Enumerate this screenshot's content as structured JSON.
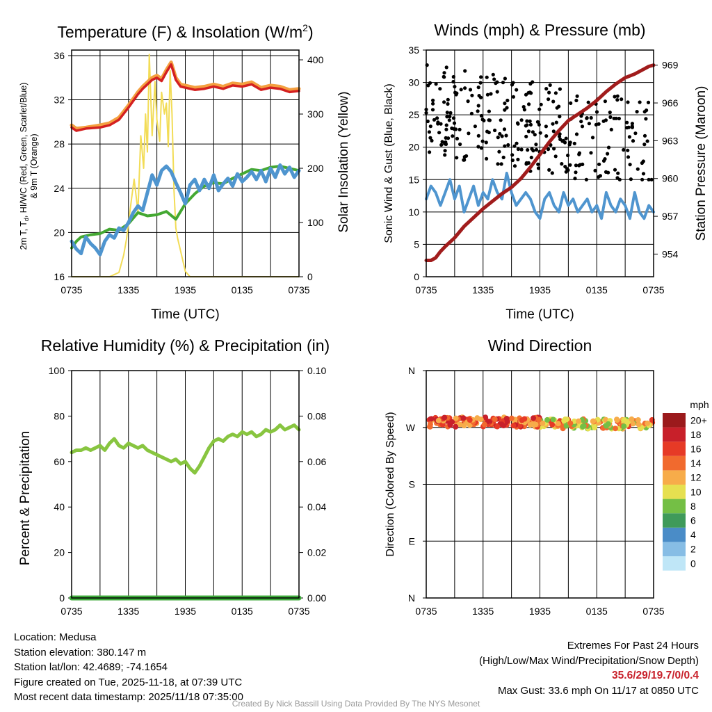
{
  "chart_data": [
    {
      "id": "temp",
      "type": "line",
      "title": "Temperature (F) & Insolation (W/m",
      "title_sup": "2",
      "title_end": ")",
      "xlabel": "Time (UTC)",
      "ylabel_left": [
        "2m T, T",
        "d",
        ", HI/WC (Red, Green, Scarlet/Blue)",
        "& 9m T (Orange)"
      ],
      "ylabel_right": "Solar Insolation (Yellow)",
      "x_ticks": [
        "0735",
        "1335",
        "1935",
        "0135",
        "0735"
      ],
      "xlim_hours": [
        0,
        24
      ],
      "ylim_left": [
        16,
        36.5
      ],
      "yticks_left": [
        "16",
        "20",
        "24",
        "28",
        "32",
        "36"
      ],
      "ylim_right": [
        0,
        418
      ],
      "yticks_right": [
        "0",
        "100",
        "200",
        "300",
        "400"
      ],
      "series": [
        {
          "name": "9m T",
          "color": "#f4a040",
          "axis": "left",
          "x": [
            0,
            0.5,
            1.5,
            3,
            4,
            5,
            6,
            7,
            7.5,
            8,
            8.5,
            9,
            9.5,
            10,
            10.5,
            11,
            11.5,
            12,
            13,
            14,
            15,
            16,
            17,
            18,
            19,
            20,
            21,
            22,
            23,
            24
          ],
          "y": [
            29.7,
            29.4,
            29.5,
            29.7,
            29.9,
            30.4,
            31.5,
            32.7,
            33.2,
            33.6,
            34.0,
            34.2,
            33.9,
            34.7,
            35.4,
            34.0,
            33.4,
            33.3,
            33.1,
            33.2,
            33.4,
            33.2,
            33.5,
            33.4,
            33.6,
            33.1,
            33.3,
            33.2,
            32.9,
            33.0
          ]
        },
        {
          "name": "2m T",
          "color": "#d42020",
          "axis": "left",
          "x": [
            0,
            0.5,
            1.5,
            3,
            4,
            5,
            6,
            7,
            7.5,
            8,
            8.5,
            9,
            9.5,
            10,
            10.5,
            11,
            11.5,
            12,
            13,
            14,
            15,
            16,
            17,
            18,
            19,
            20,
            21,
            22,
            23,
            24
          ],
          "y": [
            29.5,
            29.2,
            29.4,
            29.5,
            29.7,
            30.2,
            31.3,
            32.5,
            33.0,
            33.4,
            33.8,
            34.0,
            33.7,
            34.5,
            35.2,
            33.8,
            33.2,
            33.1,
            32.9,
            33.0,
            33.2,
            33.0,
            33.3,
            33.2,
            33.4,
            32.9,
            33.1,
            33.0,
            32.7,
            32.8
          ]
        },
        {
          "name": "HI/WC",
          "color": "#44a832",
          "axis": "left",
          "x": [
            0,
            0.5,
            1,
            2,
            3,
            4,
            5,
            6,
            7,
            8,
            9,
            10,
            11,
            12,
            13,
            14,
            15,
            16,
            17,
            18,
            19,
            20,
            21,
            22,
            23,
            24
          ],
          "y": [
            18.6,
            19.2,
            19.6,
            19.8,
            19.9,
            20.3,
            20.2,
            20.8,
            21.8,
            21.5,
            21.6,
            21.9,
            21.2,
            22.6,
            23.5,
            24.2,
            24.5,
            24.4,
            24.9,
            25.3,
            25.7,
            25.6,
            25.9,
            26.0,
            25.8,
            25.6
          ]
        },
        {
          "name": "Td",
          "color": "#4f95cf",
          "axis": "left",
          "x": [
            0,
            0.5,
            1,
            1.5,
            2,
            2.5,
            3,
            3.5,
            4,
            4.5,
            5,
            5.5,
            6,
            6.5,
            7,
            7.5,
            8,
            8.5,
            9,
            9.5,
            10,
            10.5,
            11,
            11.5,
            12,
            12.5,
            13,
            13.5,
            14,
            14.5,
            15,
            15.5,
            16,
            16.5,
            17,
            17.5,
            18,
            18.5,
            19,
            19.5,
            20,
            20.5,
            21,
            21.5,
            22,
            22.5,
            23,
            23.5,
            24
          ],
          "y": [
            19.2,
            18.5,
            18.1,
            19.6,
            19.0,
            18.6,
            18.0,
            19.2,
            19.8,
            19.5,
            20.4,
            20.2,
            20.9,
            21.8,
            22.4,
            22.0,
            23.6,
            25.2,
            24.3,
            25.6,
            26.0,
            25.5,
            24.5,
            23.6,
            22.6,
            24.3,
            24.8,
            23.8,
            24.8,
            24.0,
            25.2,
            23.8,
            24.4,
            24.9,
            24.2,
            25.3,
            24.6,
            25.0,
            25.5,
            24.8,
            25.6,
            24.6,
            25.8,
            25.0,
            26.1,
            25.3,
            25.9,
            25.0,
            25.6
          ]
        },
        {
          "name": "Solar Insolation",
          "color": "#f2dc56",
          "axis": "right",
          "x": [
            0,
            4,
            5,
            5.5,
            5.8,
            6.3,
            6.6,
            7.0,
            7.3,
            7.6,
            7.8,
            8.0,
            8.2,
            8.5,
            8.8,
            9.0,
            9.3,
            9.5,
            9.8,
            10.0,
            10.2,
            10.4,
            10.6,
            10.8,
            11.0,
            11.2,
            11.6,
            12.0,
            12.5,
            24
          ],
          "y": [
            0,
            0,
            8,
            40,
            70,
            140,
            180,
            120,
            260,
            200,
            300,
            230,
            410,
            260,
            360,
            290,
            250,
            340,
            300,
            320,
            240,
            380,
            300,
            160,
            90,
            70,
            40,
            10,
            0,
            0
          ]
        }
      ]
    },
    {
      "id": "wind",
      "type": "line",
      "title": "Winds (mph) & Pressure (mb)",
      "xlabel": "Time (UTC)",
      "ylabel_left": "Sonic Wind & Gust (Blue, Black)",
      "ylabel_right": "Station Pressure (Maroon)",
      "x_ticks": [
        "0735",
        "1335",
        "1935",
        "0135",
        "0735"
      ],
      "xlim_hours": [
        0,
        24
      ],
      "ylim_left": [
        0,
        35
      ],
      "yticks_left": [
        "0",
        "5",
        "10",
        "15",
        "20",
        "25",
        "30",
        "35"
      ],
      "ylim_right": [
        952.2,
        970.2
      ],
      "yticks_right": [
        "954",
        "957",
        "960",
        "963",
        "966",
        "969"
      ],
      "series": [
        {
          "name": "Sonic Wind",
          "color": "#4f95cf",
          "axis": "left",
          "x": [
            0,
            0.5,
            1,
            1.5,
            2,
            2.5,
            3,
            3.5,
            4,
            4.5,
            5,
            5.5,
            6,
            6.5,
            7,
            7.5,
            8,
            8.5,
            9,
            9.5,
            10,
            10.5,
            11,
            11.5,
            12,
            12.5,
            13,
            13.5,
            14,
            14.5,
            15,
            15.5,
            16,
            16.5,
            17,
            17.5,
            18,
            18.5,
            19,
            19.5,
            20,
            20.5,
            21,
            21.5,
            22,
            22.5,
            23,
            23.5,
            24
          ],
          "y": [
            12,
            14,
            13,
            11,
            13,
            15,
            12,
            14,
            10,
            12,
            14,
            11,
            13,
            12,
            15,
            13,
            12,
            16,
            13,
            11,
            12,
            13,
            12,
            10,
            9,
            12,
            13,
            11,
            10,
            13,
            11,
            12,
            10,
            11,
            12,
            10,
            11,
            9,
            13,
            11,
            10,
            12,
            11,
            9,
            13,
            10,
            9,
            11,
            10
          ]
        },
        {
          "name": "Station Pressure",
          "color": "#a11c1c",
          "axis": "right",
          "x": [
            0,
            0.5,
            1,
            1.5,
            2,
            3,
            4,
            5,
            6,
            7,
            8,
            9,
            10,
            11,
            12,
            13,
            14,
            15,
            16,
            17,
            18,
            19,
            20,
            21,
            22,
            22.5,
            23,
            23.5,
            24
          ],
          "y": [
            953.5,
            953.5,
            953.7,
            954.2,
            954.6,
            955.3,
            956.2,
            956.9,
            957.6,
            958.2,
            958.8,
            959.3,
            960.0,
            960.9,
            961.9,
            962.9,
            963.8,
            964.6,
            965.1,
            965.6,
            966.2,
            966.9,
            967.5,
            968.0,
            968.3,
            968.5,
            968.7,
            968.9,
            969.0
          ]
        }
      ]
    },
    {
      "id": "rh",
      "type": "line",
      "title": "Relative Humidity (%) & Precipitation (in)",
      "xlabel": "",
      "ylabel_left": "Percent & Precipitation",
      "ylabel_right": "",
      "x_ticks": [
        "0735",
        "1335",
        "1935",
        "0135",
        "0735"
      ],
      "xlim_hours": [
        0,
        24
      ],
      "ylim_left": [
        0,
        100
      ],
      "yticks_left": [
        "0",
        "20",
        "40",
        "60",
        "80",
        "100"
      ],
      "ylim_right": [
        0,
        0.1
      ],
      "yticks_right": [
        "0.00",
        "0.02",
        "0.04",
        "0.06",
        "0.08",
        "0.10"
      ],
      "series": [
        {
          "name": "Relative Humidity",
          "color": "#88c540",
          "axis": "left",
          "x": [
            0,
            0.5,
            1,
            1.5,
            2,
            2.5,
            3,
            3.5,
            4,
            4.5,
            5,
            5.5,
            6,
            6.5,
            7,
            7.5,
            8,
            8.5,
            9,
            9.5,
            10,
            10.5,
            11,
            11.5,
            12,
            12.5,
            13,
            13.5,
            14,
            14.5,
            15,
            15.5,
            16,
            16.5,
            17,
            17.5,
            18,
            18.5,
            19,
            19.5,
            20,
            20.5,
            21,
            21.5,
            22,
            22.5,
            23,
            23.5,
            24
          ],
          "y": [
            64,
            65,
            65,
            66,
            65,
            66,
            67,
            65,
            68,
            70,
            67,
            66,
            68,
            67,
            66,
            67,
            65,
            64,
            63,
            62,
            61,
            60,
            61,
            59,
            60,
            57,
            55,
            58,
            62,
            66,
            69,
            70,
            69,
            71,
            72,
            71,
            73,
            72,
            73,
            71,
            72,
            74,
            73,
            74,
            76,
            74,
            75,
            76,
            74
          ]
        },
        {
          "name": "Precipitation",
          "color": "#3daa3a",
          "axis": "right",
          "x": [
            0,
            24
          ],
          "y": [
            0,
            0
          ]
        }
      ]
    },
    {
      "id": "wdir",
      "type": "scatter",
      "title": "Wind Direction",
      "xlabel": "",
      "ylabel_left": "Direction (Colored By Speed)",
      "x_ticks": [
        "0735",
        "1335",
        "1935",
        "0135",
        "0735"
      ],
      "xlim_hours": [
        0,
        24
      ],
      "ylim_degrees": [
        0,
        360
      ],
      "yticks_left": [
        "N",
        "E",
        "S",
        "W",
        "N"
      ],
      "colorbar_title": "mph",
      "colorbar_labels": [
        "0",
        "2",
        "4",
        "6",
        "8",
        "10",
        "12",
        "14",
        "16",
        "18",
        "20+"
      ],
      "colorbar_colors": [
        "#bfe6f7",
        "#87bde5",
        "#4a8cc7",
        "#3f9a5a",
        "#74bf45",
        "#e6e050",
        "#f7ac4a",
        "#f16a2e",
        "#e63a26",
        "#c8202a",
        "#9b1a1c"
      ]
    }
  ],
  "info_left": [
    "Location: Medusa",
    "Station elevation: 380.147 m",
    "Station lat/lon: 42.4689; -74.1654",
    "Figure created on Tue, 2025-11-18, at 07:39 UTC",
    "Most recent data timestamp: 2025/11/18 07:35:00"
  ],
  "extremes": {
    "heading": "Extremes For Past 24 Hours",
    "subheading": "(High/Low/Max Wind/Precipitation/Snow Depth)",
    "values": "35.6/29/19.7/0/0.4",
    "max_gust": "Max Gust: 33.6 mph On 11/17 at 0850 UTC"
  },
  "footer": "Created By Nick Bassill Using Data Provided By The NYS Mesonet"
}
